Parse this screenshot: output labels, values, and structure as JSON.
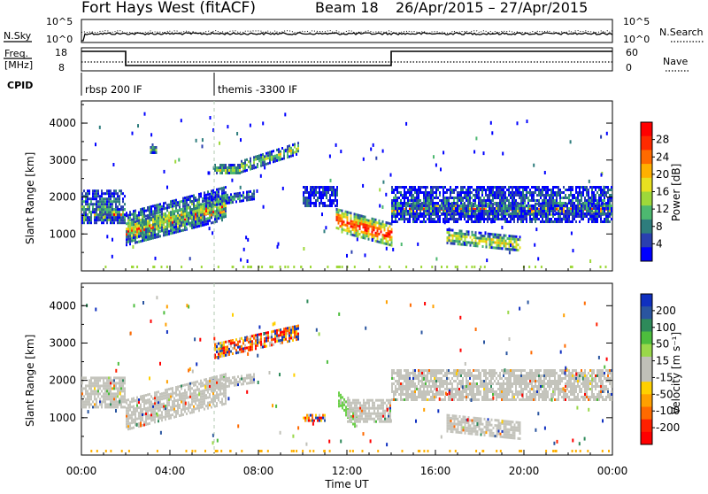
{
  "header": {
    "station": "Fort Hays West (fitACF)",
    "beam": "Beam 18",
    "date_range": "26/Apr/2015 – 27/Apr/2015"
  },
  "top_panel": {
    "nsky_label": "N.Sky",
    "nsky_ticks": [
      "10^5",
      "10^0"
    ],
    "nsearch_label": "N.Search",
    "nsearch_ticks": [
      "10^5",
      "10^0"
    ],
    "freq_label_1": "Freq.",
    "freq_label_2": "[MHz]",
    "freq_ticks": [
      "18",
      "8"
    ],
    "nave_label": "Nave",
    "nave_ticks": [
      "60",
      "0"
    ],
    "cpid_label": "CPID",
    "cpid_items": [
      {
        "label": "rbsp 200 IF",
        "start_hour": 0
      },
      {
        "label": "themis -3300 IF",
        "start_hour": 6
      }
    ],
    "freq_schedule": [
      {
        "start_hour": 0,
        "end_hour": 2,
        "value": "high"
      },
      {
        "start_hour": 2,
        "end_hour": 14,
        "value": "low"
      },
      {
        "start_hour": 14,
        "end_hour": 24,
        "value": "high"
      }
    ]
  },
  "chart_data": [
    {
      "type": "heatmap",
      "title": "Power",
      "ylabel": "Slant Range [km]",
      "yticks": [
        "1000",
        "2000",
        "3000",
        "4000"
      ],
      "ylim": [
        0,
        4600
      ],
      "xlim": [
        0,
        24
      ],
      "colorbar_label": "Power [dB]",
      "colorbar_ticks": [
        "4",
        "8",
        "12",
        "16",
        "20",
        "24",
        "28"
      ],
      "colorbar_colors": [
        "#0000ff",
        "#2a3fb0",
        "#2e7d7d",
        "#4db870",
        "#9ed83a",
        "#e8e020",
        "#ffb000",
        "#ff6a00",
        "#ff2a00",
        "#ff0000"
      ],
      "regions": [
        {
          "x0": 0.0,
          "x1": 2.0,
          "y0": 1400,
          "y1": 1700,
          "yshift": 0,
          "level": 0.55
        },
        {
          "x0": 0.0,
          "x1": 2.0,
          "y0": 1300,
          "y1": 2200,
          "yshift": 0,
          "level": 0.2
        },
        {
          "x0": 2.0,
          "x1": 6.5,
          "y0": 800,
          "y1": 1300,
          "yshift": 700,
          "level": 0.7
        },
        {
          "x0": 2.0,
          "x1": 6.5,
          "y0": 700,
          "y1": 1600,
          "yshift": 700,
          "level": 0.3
        },
        {
          "x0": 5.6,
          "x1": 7.8,
          "y0": 1750,
          "y1": 2000,
          "yshift": 200,
          "level": 0.2
        },
        {
          "x0": 6.0,
          "x1": 7.2,
          "y0": 2650,
          "y1": 2900,
          "yshift": 0,
          "level": 0.35
        },
        {
          "x0": 7.2,
          "x1": 9.8,
          "y0": 2700,
          "y1": 3000,
          "yshift": 500,
          "level": 0.35
        },
        {
          "x0": 10.0,
          "x1": 11.6,
          "y0": 1750,
          "y1": 2300,
          "yshift": 0,
          "level": 0.1
        },
        {
          "x0": 11.5,
          "x1": 14.0,
          "y0": 1100,
          "y1": 1700,
          "yshift": -400,
          "level": 0.65
        },
        {
          "x0": 14.0,
          "x1": 24.0,
          "y0": 1550,
          "y1": 1850,
          "yshift": 0,
          "level": 0.55
        },
        {
          "x0": 14.0,
          "x1": 24.0,
          "y0": 1350,
          "y1": 2300,
          "yshift": 0,
          "level": 0.15
        },
        {
          "x0": 16.5,
          "x1": 19.8,
          "y0": 750,
          "y1": 1150,
          "yshift": -200,
          "level": 0.4
        },
        {
          "x0": 3.1,
          "x1": 3.4,
          "y0": 3200,
          "y1": 3450,
          "yshift": 0,
          "level": 0.3
        }
      ]
    },
    {
      "type": "heatmap",
      "title": "Velocity",
      "ylabel": "Slant Range [km]",
      "xlabel": "Time UT",
      "xticks": [
        "00:00",
        "04:00",
        "08:00",
        "12:00",
        "16:00",
        "20:00",
        "00:00"
      ],
      "yticks": [
        "1000",
        "2000",
        "3000",
        "4000"
      ],
      "ylim": [
        0,
        4600
      ],
      "xlim": [
        0,
        24
      ],
      "colorbar_label": "Velocity [m s⁻¹]",
      "colorbar_ticks": [
        "200",
        "100",
        "50",
        "15",
        "-15",
        "-50",
        "-100",
        "-200"
      ],
      "colorbar_colors": [
        "#1030c0",
        "#2a55a0",
        "#2e8a5a",
        "#4dbd3d",
        "#9ad84a",
        "#c0c0b8",
        "#c0c0b8",
        "#ffd000",
        "#ffa000",
        "#ff6a00",
        "#ff2000",
        "#ff0000"
      ],
      "regions": [
        {
          "x0": 0.0,
          "x1": 2.0,
          "y0": 1300,
          "y1": 2100,
          "yshift": 0,
          "tone": "gray"
        },
        {
          "x0": 2.0,
          "x1": 6.5,
          "y0": 700,
          "y1": 1500,
          "yshift": 700,
          "tone": "gray"
        },
        {
          "x0": 5.6,
          "x1": 7.8,
          "y0": 1750,
          "y1": 2000,
          "yshift": 200,
          "tone": "gray"
        },
        {
          "x0": 6.0,
          "x1": 9.8,
          "y0": 2600,
          "y1": 3000,
          "yshift": 500,
          "tone": "warm"
        },
        {
          "x0": 11.6,
          "x1": 12.4,
          "y0": 1300,
          "y1": 1700,
          "yshift": -600,
          "tone": "green"
        },
        {
          "x0": 12.0,
          "x1": 14.0,
          "y0": 900,
          "y1": 1500,
          "yshift": 0,
          "tone": "gray"
        },
        {
          "x0": 14.0,
          "x1": 24.0,
          "y0": 1450,
          "y1": 2300,
          "yshift": 0,
          "tone": "gray"
        },
        {
          "x0": 16.5,
          "x1": 19.8,
          "y0": 650,
          "y1": 1100,
          "yshift": -200,
          "tone": "gray"
        },
        {
          "x0": 10.0,
          "x1": 11.0,
          "y0": 900,
          "y1": 1100,
          "yshift": 0,
          "tone": "warm"
        }
      ]
    }
  ]
}
